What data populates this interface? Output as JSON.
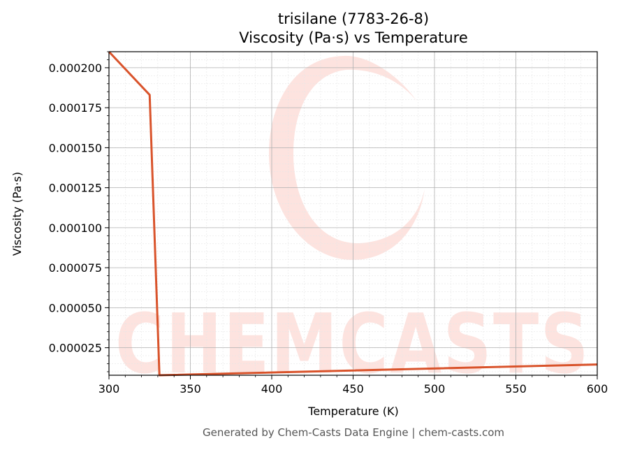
{
  "chart_data": {
    "type": "line",
    "title_line1": "trisilane (7783-26-8)",
    "title_line2": "Viscosity (Pa·s) vs Temperature",
    "xlabel": "Temperature (K)",
    "ylabel": "Viscosity (Pa·s)",
    "xlim": [
      300,
      600
    ],
    "ylim": [
      7.8e-06,
      0.00021
    ],
    "xticks": [
      300,
      350,
      400,
      450,
      500,
      550,
      600
    ],
    "xtick_labels": [
      "300",
      "350",
      "400",
      "450",
      "500",
      "550",
      "600"
    ],
    "yticks": [
      2.5e-05,
      5e-05,
      7.5e-05,
      0.0001,
      0.000125,
      0.00015,
      0.000175,
      0.0002
    ],
    "ytick_labels": [
      "0.000025",
      "0.000050",
      "0.000075",
      "0.000100",
      "0.000125",
      "0.000150",
      "0.000175",
      "0.000200"
    ],
    "grid": true,
    "series": [
      {
        "color": "#d9532b",
        "x": [
          300,
          325,
          331,
          600
        ],
        "y": [
          0.00021,
          0.000183,
          7.8e-06,
          1.45e-05
        ]
      }
    ]
  },
  "watermark": {
    "text": "CHEMCASTS",
    "color": "#fde3df"
  },
  "footer": "Generated by Chem-Casts Data Engine | chem-casts.com"
}
